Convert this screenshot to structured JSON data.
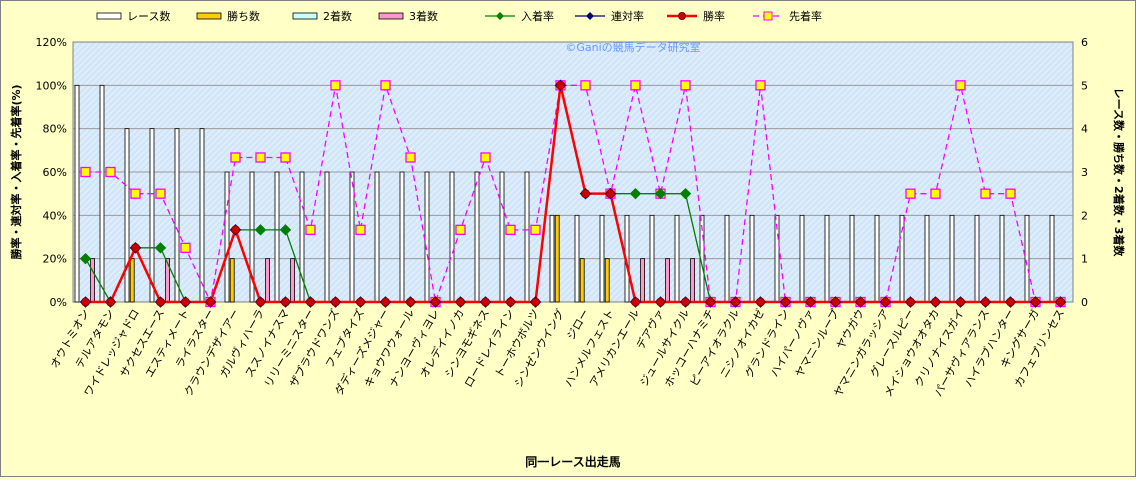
{
  "chart_data": {
    "type": "bar",
    "title": "",
    "watermark": "©Ganiの競馬データ研究室",
    "xlabel": "同一レース出走馬",
    "ylabel_left": "勝率・連対率・入着率・先着率(%)",
    "ylabel_right": "レース数・勝ち数・2着数・3着数",
    "ylim_left": [
      0,
      120
    ],
    "yticks_left": [
      "0%",
      "20%",
      "40%",
      "60%",
      "80%",
      "100%",
      "120%"
    ],
    "ylim_right": [
      0,
      6
    ],
    "yticks_right": [
      "0",
      "1",
      "2",
      "3",
      "4",
      "5",
      "6"
    ],
    "legend_position": "top",
    "grid": "horizontal",
    "categories": [
      "オウトミオン",
      "テルアタモン",
      "ワイドレッジャドロ",
      "サクセスエース",
      "エスティメート",
      "ライラスター",
      "クラウンデザイアー",
      "ガルヴィハーラ",
      "ススノイナスマ",
      "リリーミニスター",
      "ザブラウドワンズ",
      "フェブタイズ",
      "ダディーズメジャー",
      "キョウワウォール",
      "ナンヨーヴィヨレ",
      "オレデイイノカ",
      "シンヨモギネス",
      "ロードレイライン",
      "トーホウボルツ",
      "シンゼンウイング",
      "ジロー",
      "ハンメルフェスト",
      "アメリカンエール",
      "デアヴァ",
      "ジュールサイクル",
      "ホッコーハナミチ",
      "ピーアイオラクル",
      "ニシノオイカゼ",
      "グランドライン",
      "ハイパーノヴァ",
      "ヤマニンループ",
      "ヤウガウ",
      "ヤマニンガラッシア",
      "グレースルピー",
      "メイショウオオタカ",
      "クリノナイスガイ",
      "パーサヴィアランス",
      "ハイラブハンター",
      "キングサーガ",
      "カフェプリンセス"
    ],
    "series": [
      {
        "name": "レース数",
        "axis": "right",
        "kind": "bar",
        "color": "#ffffff",
        "values": [
          5,
          5,
          4,
          4,
          4,
          4,
          3,
          3,
          3,
          3,
          3,
          3,
          3,
          3,
          3,
          3,
          3,
          3,
          3,
          2,
          2,
          2,
          2,
          2,
          2,
          2,
          2,
          2,
          2,
          2,
          2,
          2,
          2,
          2,
          2,
          2,
          2,
          2,
          2,
          2
        ]
      },
      {
        "name": "勝ち数",
        "axis": "right",
        "kind": "bar",
        "color": "#ffcc00",
        "values": [
          0,
          0,
          1,
          0,
          0,
          0,
          1,
          0,
          0,
          0,
          0,
          0,
          0,
          0,
          0,
          0,
          0,
          0,
          0,
          2,
          1,
          1,
          0,
          0,
          0,
          0,
          0,
          0,
          0,
          0,
          0,
          0,
          0,
          0,
          0,
          0,
          0,
          0,
          0,
          0
        ]
      },
      {
        "name": "2着数",
        "axis": "right",
        "kind": "bar",
        "color": "#ccffff",
        "values": [
          0,
          0,
          0,
          0,
          0,
          0,
          0,
          0,
          0,
          0,
          0,
          0,
          0,
          0,
          0,
          0,
          0,
          0,
          0,
          0,
          0,
          0,
          0,
          0,
          0,
          0,
          0,
          0,
          0,
          0,
          0,
          0,
          0,
          0,
          0,
          0,
          0,
          0,
          0,
          0
        ]
      },
      {
        "name": "3着数",
        "axis": "right",
        "kind": "bar",
        "color": "#ff99cc",
        "values": [
          1,
          0,
          0,
          1,
          0,
          0,
          0,
          1,
          1,
          0,
          0,
          0,
          0,
          0,
          0,
          0,
          0,
          0,
          0,
          0,
          0,
          0,
          1,
          1,
          1,
          0,
          0,
          0,
          0,
          0,
          0,
          0,
          0,
          0,
          0,
          0,
          0,
          0,
          0,
          0
        ]
      },
      {
        "name": "入着率",
        "axis": "left",
        "kind": "line",
        "color": "#008000",
        "marker": "diamond",
        "values": [
          20,
          0,
          25,
          25,
          0,
          0,
          33.3,
          33.3,
          33.3,
          0,
          0,
          0,
          0,
          0,
          0,
          0,
          0,
          0,
          0,
          100,
          50,
          50,
          50,
          50,
          50,
          0,
          0,
          0,
          0,
          0,
          0,
          0,
          0,
          0,
          0,
          0,
          0,
          0,
          0,
          0
        ]
      },
      {
        "name": "連対率",
        "axis": "left",
        "kind": "line",
        "color": "#000080",
        "marker": "diamond",
        "values": [
          0,
          0,
          25,
          0,
          0,
          0,
          33.3,
          0,
          0,
          0,
          0,
          0,
          0,
          0,
          0,
          0,
          0,
          0,
          0,
          100,
          50,
          50,
          0,
          0,
          0,
          0,
          0,
          0,
          0,
          0,
          0,
          0,
          0,
          0,
          0,
          0,
          0,
          0,
          0,
          0
        ]
      },
      {
        "name": "勝率",
        "axis": "left",
        "kind": "line",
        "color": "#ff0000",
        "marker": "circle",
        "values": [
          0,
          0,
          25,
          0,
          0,
          0,
          33.3,
          0,
          0,
          0,
          0,
          0,
          0,
          0,
          0,
          0,
          0,
          0,
          0,
          100,
          50,
          50,
          0,
          0,
          0,
          0,
          0,
          0,
          0,
          0,
          0,
          0,
          0,
          0,
          0,
          0,
          0,
          0,
          0,
          0
        ]
      },
      {
        "name": "先着率",
        "axis": "left",
        "kind": "dashed-line",
        "color": "#ff00ff",
        "marker": "square",
        "values": [
          60,
          60,
          50,
          50,
          25,
          0,
          66.7,
          66.7,
          66.7,
          33.3,
          100,
          33.3,
          100,
          66.7,
          0,
          33.3,
          66.7,
          33.3,
          33.3,
          100,
          100,
          50,
          100,
          50,
          100,
          0,
          0,
          100,
          0,
          0,
          0,
          0,
          0,
          50,
          50,
          100,
          50,
          50,
          0,
          0
        ]
      }
    ]
  }
}
